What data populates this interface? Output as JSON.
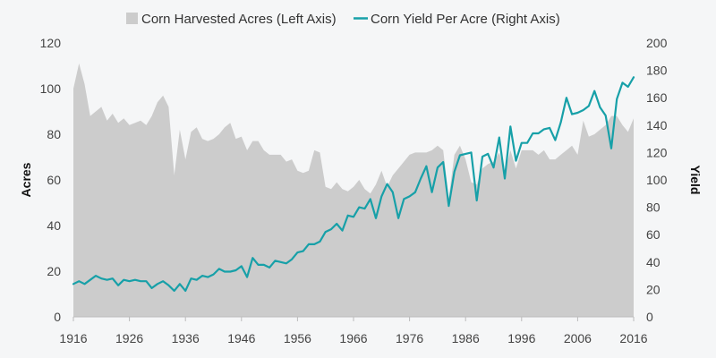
{
  "chart_data": {
    "type": "area+line",
    "legend": {
      "placement": "top-center",
      "items": [
        {
          "label": "Corn Harvested Acres (Left Axis)",
          "kind": "area",
          "color": "#cccccc"
        },
        {
          "label": "Corn Yield Per Acre (Right Axis)",
          "kind": "line",
          "color": "#17a0a8"
        }
      ]
    },
    "x": {
      "ticks": [
        "1916",
        "1926",
        "1936",
        "1946",
        "1956",
        "1966",
        "1976",
        "1986",
        "1996",
        "2006",
        "2016"
      ],
      "range": [
        1916,
        2016
      ]
    },
    "y_left": {
      "label": "Acres",
      "range": [
        0,
        120
      ],
      "ticks": [
        "0",
        "20",
        "40",
        "60",
        "80",
        "100",
        "120"
      ]
    },
    "y_right": {
      "label": "Yield",
      "range": [
        0,
        200
      ],
      "ticks": [
        "0",
        "20",
        "40",
        "60",
        "80",
        "100",
        "120",
        "140",
        "160",
        "180",
        "200"
      ]
    },
    "grid": false,
    "series": [
      {
        "name": "Corn Harvested Acres (Left Axis)",
        "axis": "left",
        "color": "#cccccc",
        "points": [
          [
            1916,
            100
          ],
          [
            1917,
            111
          ],
          [
            1918,
            102
          ],
          [
            1919,
            88
          ],
          [
            1920,
            90
          ],
          [
            1921,
            92
          ],
          [
            1922,
            86
          ],
          [
            1923,
            89
          ],
          [
            1924,
            85
          ],
          [
            1925,
            87
          ],
          [
            1926,
            84
          ],
          [
            1927,
            85
          ],
          [
            1928,
            86
          ],
          [
            1929,
            84
          ],
          [
            1930,
            88
          ],
          [
            1931,
            94
          ],
          [
            1932,
            97
          ],
          [
            1933,
            92
          ],
          [
            1934,
            62
          ],
          [
            1935,
            82
          ],
          [
            1936,
            69
          ],
          [
            1937,
            81
          ],
          [
            1938,
            83
          ],
          [
            1939,
            78
          ],
          [
            1940,
            77
          ],
          [
            1941,
            78
          ],
          [
            1942,
            80
          ],
          [
            1943,
            83
          ],
          [
            1944,
            85
          ],
          [
            1945,
            78
          ],
          [
            1946,
            79
          ],
          [
            1947,
            73
          ],
          [
            1948,
            77
          ],
          [
            1949,
            77
          ],
          [
            1950,
            73
          ],
          [
            1951,
            71
          ],
          [
            1952,
            71
          ],
          [
            1953,
            71
          ],
          [
            1954,
            68
          ],
          [
            1955,
            69
          ],
          [
            1956,
            64
          ],
          [
            1957,
            63
          ],
          [
            1958,
            64
          ],
          [
            1959,
            73
          ],
          [
            1960,
            72
          ],
          [
            1961,
            57
          ],
          [
            1962,
            56
          ],
          [
            1963,
            59
          ],
          [
            1964,
            56
          ],
          [
            1965,
            55
          ],
          [
            1966,
            57
          ],
          [
            1967,
            60
          ],
          [
            1968,
            56
          ],
          [
            1969,
            54
          ],
          [
            1970,
            58
          ],
          [
            1971,
            64
          ],
          [
            1972,
            57
          ],
          [
            1973,
            62
          ],
          [
            1974,
            65
          ],
          [
            1975,
            68
          ],
          [
            1976,
            71
          ],
          [
            1977,
            72
          ],
          [
            1978,
            72
          ],
          [
            1979,
            72
          ],
          [
            1980,
            73
          ],
          [
            1981,
            75
          ],
          [
            1982,
            73
          ],
          [
            1983,
            52
          ],
          [
            1984,
            71
          ],
          [
            1985,
            75
          ],
          [
            1986,
            69
          ],
          [
            1987,
            59
          ],
          [
            1988,
            58
          ],
          [
            1989,
            65
          ],
          [
            1990,
            67
          ],
          [
            1991,
            68
          ],
          [
            1992,
            72
          ],
          [
            1993,
            63
          ],
          [
            1994,
            73
          ],
          [
            1995,
            65
          ],
          [
            1996,
            73
          ],
          [
            1997,
            73
          ],
          [
            1998,
            73
          ],
          [
            1999,
            71
          ],
          [
            2000,
            73
          ],
          [
            2001,
            69
          ],
          [
            2002,
            69
          ],
          [
            2003,
            71
          ],
          [
            2004,
            73
          ],
          [
            2005,
            75
          ],
          [
            2006,
            71
          ],
          [
            2007,
            86
          ],
          [
            2008,
            79
          ],
          [
            2009,
            80
          ],
          [
            2010,
            82
          ],
          [
            2011,
            84
          ],
          [
            2012,
            88
          ],
          [
            2013,
            88
          ],
          [
            2014,
            84
          ],
          [
            2015,
            81
          ],
          [
            2016,
            87
          ]
        ]
      },
      {
        "name": "Corn Yield Per Acre (Right Axis)",
        "axis": "right",
        "color": "#17a0a8",
        "points": [
          [
            1916,
            24
          ],
          [
            1917,
            26
          ],
          [
            1918,
            24
          ],
          [
            1919,
            27
          ],
          [
            1920,
            30
          ],
          [
            1921,
            28
          ],
          [
            1922,
            27
          ],
          [
            1923,
            28
          ],
          [
            1924,
            23
          ],
          [
            1925,
            27
          ],
          [
            1926,
            26
          ],
          [
            1927,
            27
          ],
          [
            1928,
            26
          ],
          [
            1929,
            26
          ],
          [
            1930,
            21
          ],
          [
            1931,
            24
          ],
          [
            1932,
            26
          ],
          [
            1933,
            23
          ],
          [
            1934,
            19
          ],
          [
            1935,
            24
          ],
          [
            1936,
            19
          ],
          [
            1937,
            28
          ],
          [
            1938,
            27
          ],
          [
            1939,
            30
          ],
          [
            1940,
            29
          ],
          [
            1941,
            31
          ],
          [
            1942,
            35
          ],
          [
            1943,
            33
          ],
          [
            1944,
            33
          ],
          [
            1945,
            34
          ],
          [
            1946,
            37
          ],
          [
            1947,
            29
          ],
          [
            1948,
            43
          ],
          [
            1949,
            38
          ],
          [
            1950,
            38
          ],
          [
            1951,
            36
          ],
          [
            1952,
            41
          ],
          [
            1953,
            40
          ],
          [
            1954,
            39
          ],
          [
            1955,
            42
          ],
          [
            1956,
            47
          ],
          [
            1957,
            48
          ],
          [
            1958,
            53
          ],
          [
            1959,
            53
          ],
          [
            1960,
            55
          ],
          [
            1961,
            62
          ],
          [
            1962,
            64
          ],
          [
            1963,
            68
          ],
          [
            1964,
            63
          ],
          [
            1965,
            74
          ],
          [
            1966,
            73
          ],
          [
            1967,
            80
          ],
          [
            1968,
            79
          ],
          [
            1969,
            86
          ],
          [
            1970,
            72
          ],
          [
            1971,
            88
          ],
          [
            1972,
            97
          ],
          [
            1973,
            91
          ],
          [
            1974,
            72
          ],
          [
            1975,
            86
          ],
          [
            1976,
            88
          ],
          [
            1977,
            91
          ],
          [
            1978,
            101
          ],
          [
            1979,
            110
          ],
          [
            1980,
            91
          ],
          [
            1981,
            109
          ],
          [
            1982,
            113
          ],
          [
            1983,
            81
          ],
          [
            1984,
            106
          ],
          [
            1985,
            118
          ],
          [
            1986,
            119
          ],
          [
            1987,
            120
          ],
          [
            1988,
            85
          ],
          [
            1989,
            117
          ],
          [
            1990,
            119
          ],
          [
            1991,
            109
          ],
          [
            1992,
            131
          ],
          [
            1993,
            101
          ],
          [
            1994,
            139
          ],
          [
            1995,
            114
          ],
          [
            1996,
            127
          ],
          [
            1997,
            127
          ],
          [
            1998,
            134
          ],
          [
            1999,
            134
          ],
          [
            2000,
            137
          ],
          [
            2001,
            138
          ],
          [
            2002,
            129
          ],
          [
            2003,
            142
          ],
          [
            2004,
            160
          ],
          [
            2005,
            148
          ],
          [
            2006,
            149
          ],
          [
            2007,
            151
          ],
          [
            2008,
            154
          ],
          [
            2009,
            165
          ],
          [
            2010,
            153
          ],
          [
            2011,
            147
          ],
          [
            2012,
            123
          ],
          [
            2013,
            159
          ],
          [
            2014,
            171
          ],
          [
            2015,
            168
          ],
          [
            2016,
            175
          ]
        ]
      }
    ]
  }
}
